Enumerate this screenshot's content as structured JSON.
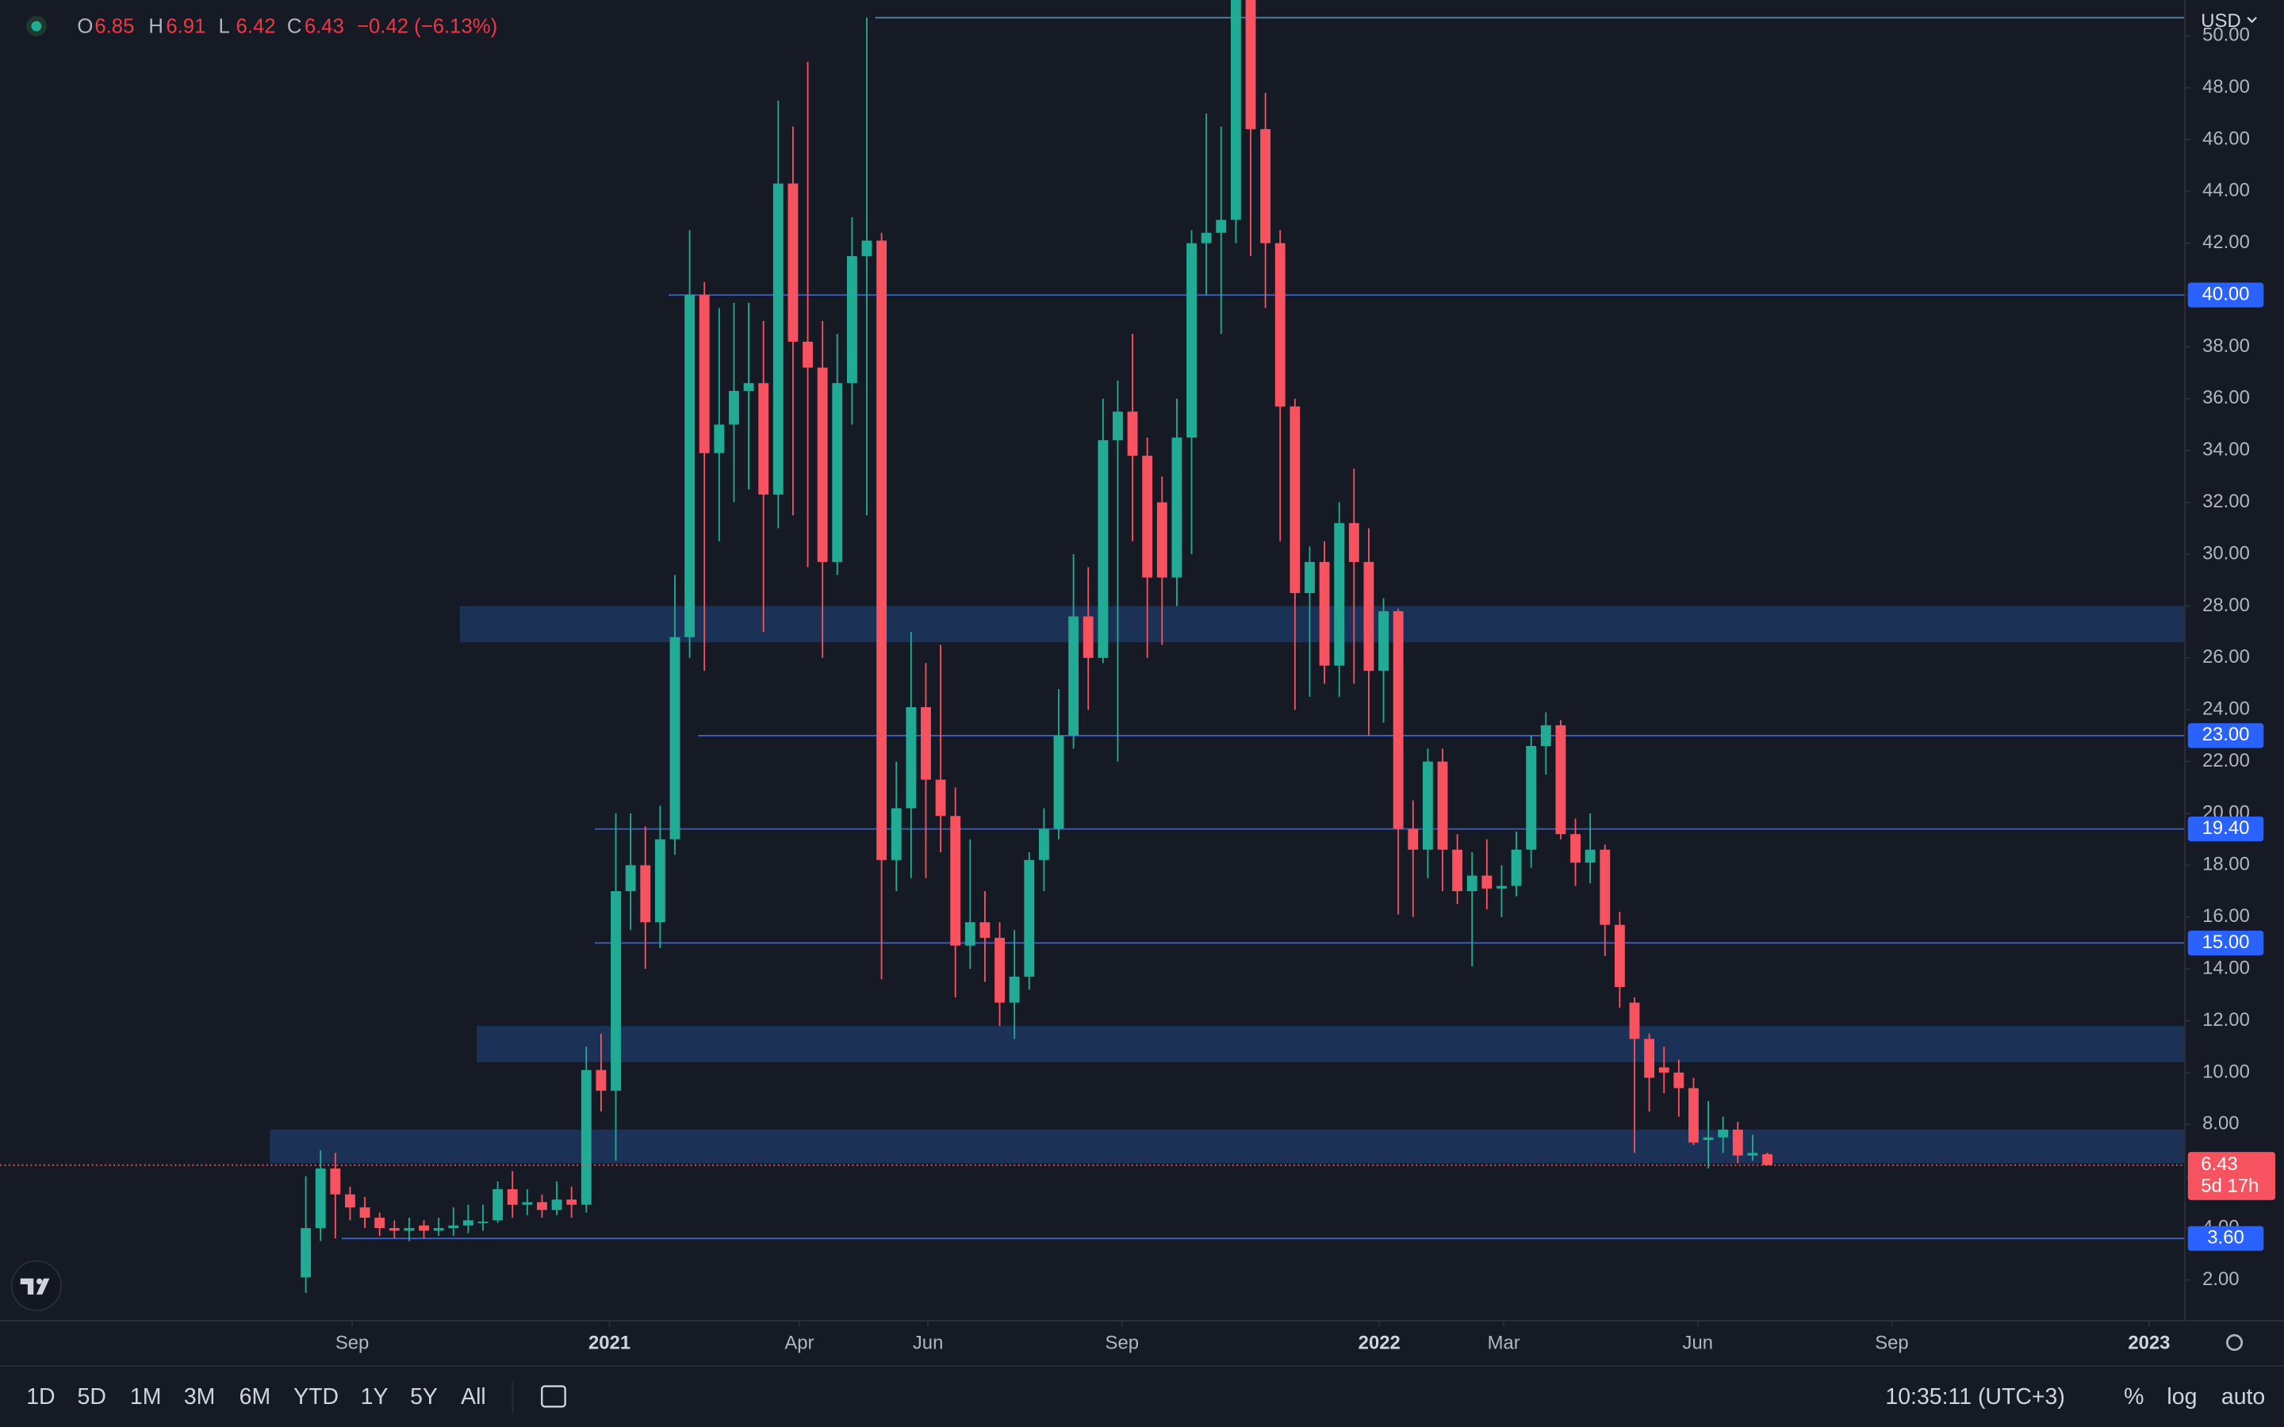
{
  "chart_data": {
    "type": "candlestick",
    "currency": "USD",
    "legend_ohlc": [
      {
        "label": "O",
        "value": "6.85"
      },
      {
        "label": "H",
        "value": "6.91"
      },
      {
        "label": "L",
        "value": "6.42"
      },
      {
        "label": "C",
        "value": "6.43"
      }
    ],
    "change": "−0.42 (−6.13%)",
    "x": [
      "2020-08-10",
      "2020-08-17",
      "2020-08-24",
      "2020-08-31",
      "2020-09-07",
      "2020-09-14",
      "2020-09-21",
      "2020-09-28",
      "2020-10-05",
      "2020-10-12",
      "2020-10-19",
      "2020-10-26",
      "2020-11-02",
      "2020-11-09",
      "2020-11-16",
      "2020-11-23",
      "2020-11-30",
      "2020-12-07",
      "2020-12-14",
      "2020-12-21",
      "2020-12-28",
      "2021-01-04",
      "2021-01-11",
      "2021-01-18",
      "2021-01-25",
      "2021-02-01",
      "2021-02-08",
      "2021-02-15",
      "2021-02-22",
      "2021-03-01",
      "2021-03-08",
      "2021-03-15",
      "2021-03-22",
      "2021-03-29",
      "2021-04-05",
      "2021-04-12",
      "2021-04-19",
      "2021-04-26",
      "2021-05-03",
      "2021-05-10",
      "2021-05-17",
      "2021-05-24",
      "2021-05-31",
      "2021-06-07",
      "2021-06-14",
      "2021-06-21",
      "2021-06-28",
      "2021-07-05",
      "2021-07-12",
      "2021-07-19",
      "2021-07-26",
      "2021-08-02",
      "2021-08-09",
      "2021-08-16",
      "2021-08-23",
      "2021-08-30",
      "2021-09-06",
      "2021-09-13",
      "2021-09-20",
      "2021-09-27",
      "2021-10-04",
      "2021-10-11",
      "2021-10-18",
      "2021-10-25",
      "2021-11-01",
      "2021-11-08",
      "2021-11-15",
      "2021-11-22",
      "2021-11-29",
      "2021-12-06",
      "2021-12-13",
      "2021-12-20",
      "2021-12-27",
      "2022-01-03",
      "2022-01-10",
      "2022-01-17",
      "2022-01-24",
      "2022-01-31",
      "2022-02-07",
      "2022-02-14",
      "2022-02-21",
      "2022-02-28",
      "2022-03-07",
      "2022-03-14",
      "2022-03-21",
      "2022-03-28",
      "2022-04-04",
      "2022-04-11",
      "2022-04-18",
      "2022-04-25",
      "2022-05-02",
      "2022-05-09",
      "2022-05-16",
      "2022-05-23",
      "2022-05-30",
      "2022-06-06",
      "2022-06-13",
      "2022-06-20",
      "2022-06-27",
      "2022-07-04"
    ],
    "series": {
      "up_color": "#22ab94",
      "down_color": "#f7525f",
      "open": [
        2.1,
        4.0,
        6.3,
        5.3,
        4.8,
        4.4,
        4.0,
        3.9,
        4.1,
        3.9,
        4.0,
        4.1,
        4.2,
        4.3,
        5.5,
        4.9,
        5.0,
        4.7,
        5.1,
        4.9,
        10.1,
        9.3,
        17.0,
        18.0,
        15.8,
        19.0,
        26.8,
        40.0,
        33.9,
        35.0,
        36.3,
        36.6,
        32.3,
        44.3,
        38.2,
        37.2,
        29.7,
        36.6,
        41.5,
        42.1,
        18.2,
        20.2,
        24.1,
        21.3,
        19.9,
        14.9,
        15.8,
        15.2,
        12.7,
        13.7,
        18.2,
        19.4,
        23.0,
        27.6,
        26.0,
        34.4,
        35.5,
        33.8,
        32.0,
        29.1,
        34.5,
        42.0,
        42.4,
        42.9,
        51.5,
        46.4,
        42.0,
        35.7,
        28.5,
        29.7,
        25.7,
        31.2,
        29.7,
        25.5,
        27.8,
        19.4,
        18.6,
        22.0,
        18.6,
        17.0,
        17.6,
        17.1,
        17.2,
        18.6,
        22.6,
        23.4,
        19.2,
        18.1,
        18.6,
        15.7,
        12.7,
        11.3,
        10.2,
        10.0,
        9.4,
        7.4,
        7.5,
        7.8,
        6.8,
        6.85
      ],
      "high": [
        6.0,
        7.0,
        6.9,
        5.6,
        5.2,
        4.6,
        4.3,
        4.4,
        4.3,
        4.4,
        4.8,
        4.9,
        4.9,
        5.8,
        6.2,
        5.5,
        5.3,
        5.8,
        5.6,
        11.0,
        11.5,
        20.0,
        20.0,
        19.5,
        20.3,
        29.2,
        42.5,
        40.5,
        39.5,
        39.7,
        39.7,
        39.0,
        47.5,
        46.5,
        49.0,
        39.0,
        38.5,
        43.0,
        50.7,
        42.4,
        22.0,
        27.0,
        25.8,
        26.5,
        21.0,
        19.0,
        17.0,
        15.8,
        15.5,
        18.5,
        20.2,
        24.8,
        30.0,
        29.5,
        36.0,
        36.7,
        38.5,
        34.5,
        33.0,
        36.0,
        42.5,
        47.0,
        46.5,
        51.6,
        51.6,
        47.8,
        42.5,
        36.0,
        30.3,
        30.5,
        32.0,
        33.3,
        31.0,
        28.3,
        27.9,
        20.5,
        22.5,
        22.5,
        19.2,
        18.5,
        19.0,
        18.0,
        19.3,
        23.0,
        23.9,
        23.6,
        19.8,
        20.0,
        18.8,
        16.2,
        12.9,
        11.5,
        11.0,
        10.5,
        9.8,
        8.9,
        8.3,
        8.1,
        7.6,
        6.91
      ],
      "low": [
        1.5,
        3.5,
        3.6,
        4.3,
        4.0,
        3.7,
        3.6,
        3.5,
        3.6,
        3.7,
        3.7,
        3.8,
        3.9,
        4.2,
        4.4,
        4.5,
        4.4,
        4.5,
        4.4,
        4.6,
        8.5,
        6.6,
        15.5,
        14.0,
        14.8,
        18.4,
        26.0,
        25.5,
        30.5,
        32.0,
        32.5,
        27.0,
        31.0,
        31.5,
        29.5,
        26.0,
        29.2,
        35.0,
        31.5,
        13.6,
        17.0,
        17.5,
        17.5,
        18.5,
        12.9,
        14.0,
        13.5,
        11.8,
        11.3,
        13.2,
        17.0,
        19.0,
        22.5,
        24.0,
        25.8,
        22.0,
        30.5,
        26.0,
        26.5,
        28.0,
        30.0,
        40.0,
        38.5,
        42.0,
        41.5,
        39.5,
        30.5,
        24.0,
        24.5,
        25.0,
        24.5,
        25.0,
        23.0,
        23.5,
        16.1,
        16.0,
        17.5,
        17.0,
        16.5,
        14.1,
        16.3,
        16.0,
        16.8,
        17.9,
        21.5,
        19.0,
        17.2,
        17.3,
        14.5,
        12.5,
        6.9,
        8.5,
        9.2,
        8.3,
        7.2,
        6.3,
        6.9,
        6.5,
        6.6,
        6.42
      ],
      "close": [
        4.0,
        6.3,
        5.3,
        4.8,
        4.4,
        4.0,
        3.9,
        4.0,
        3.9,
        4.0,
        4.1,
        4.3,
        4.25,
        5.5,
        4.9,
        5.0,
        4.7,
        5.1,
        4.9,
        10.1,
        9.3,
        17.0,
        18.0,
        15.8,
        19.0,
        26.8,
        40.0,
        33.9,
        35.0,
        36.3,
        36.6,
        32.3,
        44.3,
        38.2,
        37.2,
        29.7,
        36.6,
        41.5,
        42.1,
        18.2,
        20.2,
        24.1,
        21.3,
        19.9,
        14.9,
        15.8,
        15.2,
        12.7,
        13.7,
        18.2,
        19.4,
        23.0,
        27.6,
        26.0,
        34.4,
        35.5,
        33.8,
        29.1,
        29.1,
        34.5,
        42.0,
        42.4,
        42.9,
        51.5,
        46.4,
        42.0,
        35.7,
        28.5,
        29.7,
        25.7,
        31.2,
        29.7,
        25.5,
        27.8,
        19.4,
        18.6,
        22.0,
        18.6,
        17.0,
        17.6,
        17.1,
        17.2,
        18.6,
        22.6,
        23.4,
        19.2,
        18.1,
        18.6,
        15.7,
        13.3,
        11.3,
        9.8,
        10.0,
        9.4,
        7.3,
        7.5,
        7.8,
        6.8,
        6.9,
        6.43
      ]
    },
    "xlim": [
      "2020-03-18",
      "2023-01-18"
    ],
    "xticks": [
      {
        "value": "2020-09-01",
        "label": "Sep"
      },
      {
        "value": "2021-01-01",
        "label": "2021"
      },
      {
        "value": "2021-04-01",
        "label": "Apr"
      },
      {
        "value": "2021-06-01",
        "label": "Jun"
      },
      {
        "value": "2021-09-01",
        "label": "Sep"
      },
      {
        "value": "2022-01-01",
        "label": "2022"
      },
      {
        "value": "2022-03-01",
        "label": "Mar"
      },
      {
        "value": "2022-06-01",
        "label": "Jun"
      },
      {
        "value": "2022-09-01",
        "label": "Sep"
      },
      {
        "value": "2023-01-01",
        "label": "2023"
      }
    ],
    "ylim": [
      0.427,
      51.382
    ],
    "yticks": [
      {
        "value": 2,
        "label": "2.00"
      },
      {
        "value": 4,
        "label": "4.00"
      },
      {
        "value": 6,
        "label": "6.00"
      },
      {
        "value": 8,
        "label": "8.00"
      },
      {
        "value": 10,
        "label": "10.00"
      },
      {
        "value": 12,
        "label": "12.00"
      },
      {
        "value": 14,
        "label": "14.00"
      },
      {
        "value": 16,
        "label": "16.00"
      },
      {
        "value": 18,
        "label": "18.00"
      },
      {
        "value": 20,
        "label": "20.00"
      },
      {
        "value": 22,
        "label": "22.00"
      },
      {
        "value": 24,
        "label": "24.00"
      },
      {
        "value": 26,
        "label": "26.00"
      },
      {
        "value": 28,
        "label": "28.00"
      },
      {
        "value": 30,
        "label": "30.00"
      },
      {
        "value": 32,
        "label": "32.00"
      },
      {
        "value": 34,
        "label": "34.00"
      },
      {
        "value": 36,
        "label": "36.00"
      },
      {
        "value": 38,
        "label": "38.00"
      },
      {
        "value": 40,
        "label": "40.00"
      },
      {
        "value": 42,
        "label": "42.00"
      },
      {
        "value": 44,
        "label": "44.00"
      },
      {
        "value": 46,
        "label": "46.00"
      },
      {
        "value": 48,
        "label": "48.00"
      },
      {
        "value": 50,
        "label": "50.00"
      }
    ],
    "grid": false,
    "zones": [
      {
        "low": 26.6,
        "high": 28.0,
        "from": "2020-10-22"
      },
      {
        "low": 10.4,
        "high": 11.8,
        "from": "2020-10-30"
      },
      {
        "low": 6.5,
        "high": 7.8,
        "from": "2020-07-24"
      }
    ],
    "levels": [
      {
        "value": 40,
        "label": "40.00",
        "from": "2021-01-29"
      },
      {
        "value": 23,
        "label": "23.00",
        "from": "2021-02-12"
      },
      {
        "value": 19.4,
        "label": "19.40",
        "from": "2020-12-25"
      },
      {
        "value": 15,
        "label": "15.00",
        "from": "2020-12-25"
      },
      {
        "value": 3.6,
        "label": "3.60",
        "from": "2020-08-27"
      },
      {
        "value": 50.7,
        "from": "2021-05-07"
      }
    ],
    "last_price": {
      "value": 6.43,
      "label": "6.43",
      "countdown": "5d 17h"
    }
  },
  "toolbar": {
    "ranges": [
      "1D",
      "5D",
      "1M",
      "3M",
      "6M",
      "YTD",
      "1Y",
      "5Y",
      "All"
    ],
    "time": "10:35:11 (UTC+3)",
    "options": [
      "%",
      "log",
      "auto"
    ]
  }
}
